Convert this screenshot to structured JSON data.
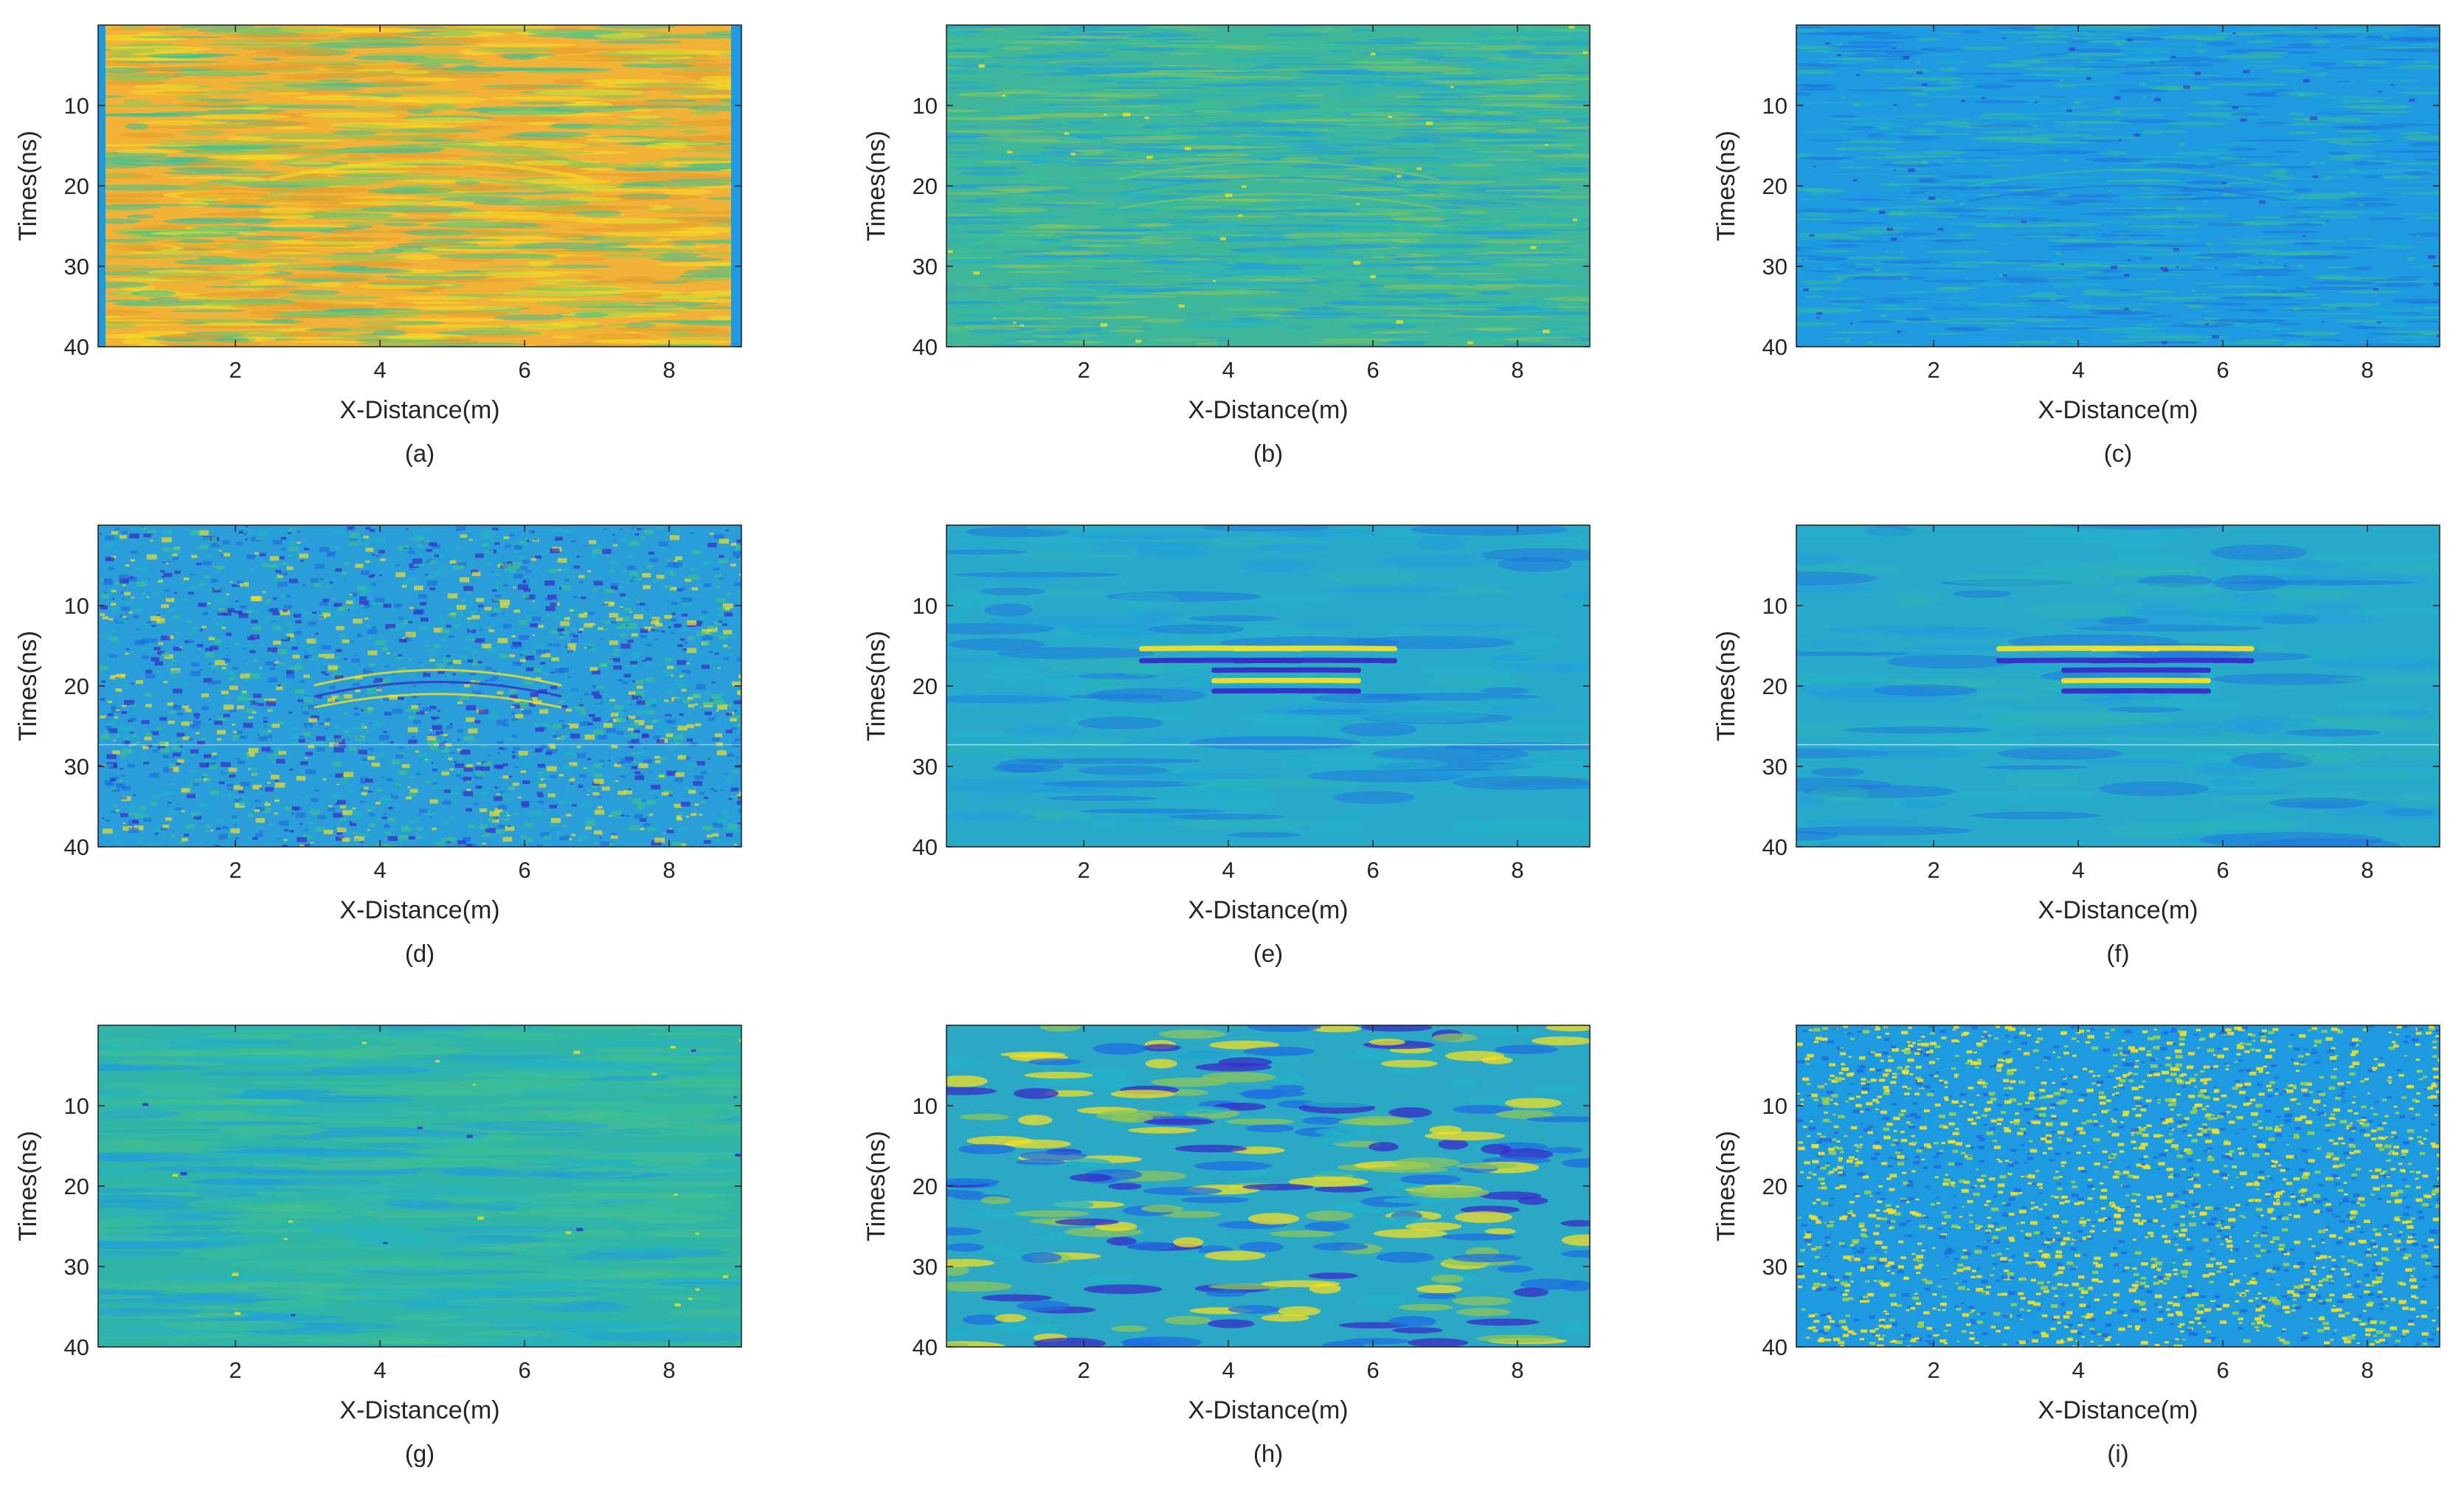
{
  "figure": {
    "panel_count": 9
  },
  "chart_data": [
    {
      "caption": "(a)",
      "type": "heatmap",
      "xlabel": "X-Distance(m)",
      "ylabel": "Times(ns)",
      "xlim": [
        0.1,
        9
      ],
      "ylim": [
        0,
        40
      ],
      "y_reversed": true,
      "xticks": [
        "2",
        "4",
        "6",
        "8"
      ],
      "yticks": [
        "10",
        "20",
        "30",
        "40"
      ],
      "colormap": "parula",
      "appearance": "predominantly orange/yellow with green horizontal streaks, faint hyperbola near 4-6 m, blue edge columns",
      "dominant_color": "#f0b030"
    },
    {
      "caption": "(b)",
      "type": "heatmap",
      "xlabel": "X-Distance(m)",
      "ylabel": "Times(ns)",
      "xlim": [
        0.1,
        9
      ],
      "ylim": [
        0,
        40
      ],
      "y_reversed": true,
      "xticks": [
        "2",
        "4",
        "6",
        "8"
      ],
      "yticks": [
        "10",
        "20",
        "30",
        "40"
      ],
      "colormap": "parula",
      "appearance": "green/teal horizontal noisy streaks with faint hyperbola centered near 4.7 m, 20 ns",
      "dominant_color": "#3fb59a"
    },
    {
      "caption": "(c)",
      "type": "heatmap",
      "xlabel": "X-Distance(m)",
      "ylabel": "Times(ns)",
      "xlim": [
        0.1,
        9
      ],
      "ylim": [
        0,
        40
      ],
      "y_reversed": true,
      "xticks": [
        "2",
        "4",
        "6",
        "8"
      ],
      "yticks": [
        "10",
        "20",
        "30",
        "40"
      ],
      "colormap": "parula",
      "appearance": "blue/teal noisy streaks, faint hyperbola near 4.7 m, 20 ns",
      "dominant_color": "#1f94d8"
    },
    {
      "caption": "(d)",
      "type": "heatmap",
      "xlabel": "X-Distance(m)",
      "ylabel": "Times(ns)",
      "xlim": [
        0.1,
        9
      ],
      "ylim": [
        0,
        40
      ],
      "y_reversed": true,
      "xticks": [
        "2",
        "4",
        "6",
        "8"
      ],
      "yticks": [
        "10",
        "20",
        "30",
        "40"
      ],
      "colormap": "parula",
      "appearance": "heavy speckle noise with visible hyperbola near 4.8 m, 18-22 ns",
      "dominant_color": "#2a9ed8"
    },
    {
      "caption": "(e)",
      "type": "heatmap",
      "xlabel": "X-Distance(m)",
      "ylabel": "Times(ns)",
      "xlim": [
        0.1,
        9
      ],
      "ylim": [
        0,
        40
      ],
      "y_reversed": true,
      "xticks": [
        "2",
        "4",
        "6",
        "8"
      ],
      "yticks": [
        "10",
        "20",
        "30",
        "40"
      ],
      "colormap": "parula",
      "appearance": "smooth teal background, strong hyperbolic reflections between 3-6 m at 15-21 ns",
      "dominant_color": "#28aacb"
    },
    {
      "caption": "(f)",
      "type": "heatmap",
      "xlabel": "X-Distance(m)",
      "ylabel": "Times(ns)",
      "xlim": [
        0.1,
        9
      ],
      "ylim": [
        0,
        40
      ],
      "y_reversed": true,
      "xticks": [
        "2",
        "4",
        "6",
        "8"
      ],
      "yticks": [
        "10",
        "20",
        "30",
        "40"
      ],
      "colormap": "parula",
      "appearance": "smooth teal background, strong clean hyperbolic reflections between 2.8-6.5 m at 15-21 ns",
      "dominant_color": "#28aacb"
    },
    {
      "caption": "(g)",
      "type": "heatmap",
      "xlabel": "X-Distance(m)",
      "ylabel": "Times(ns)",
      "xlim": [
        0.1,
        9
      ],
      "ylim": [
        0,
        40
      ],
      "y_reversed": true,
      "xticks": [
        "2",
        "4",
        "6",
        "8"
      ],
      "yticks": [
        "10",
        "20",
        "30",
        "40"
      ],
      "colormap": "parula",
      "appearance": "smooth green-teal horizontal bands, no clear target",
      "dominant_color": "#2fb4a8"
    },
    {
      "caption": "(h)",
      "type": "heatmap",
      "xlabel": "X-Distance(m)",
      "ylabel": "Times(ns)",
      "xlim": [
        0.1,
        9
      ],
      "ylim": [
        0,
        40
      ],
      "y_reversed": true,
      "xticks": [
        "2",
        "4",
        "6",
        "8"
      ],
      "yticks": [
        "10",
        "20",
        "30",
        "40"
      ],
      "colormap": "parula",
      "appearance": "blotchy horizontal yellow and dark blue lenses on teal background",
      "dominant_color": "#2aa8c4"
    },
    {
      "caption": "(i)",
      "type": "heatmap",
      "xlabel": "X-Distance(m)",
      "ylabel": "Times(ns)",
      "xlim": [
        0.1,
        9
      ],
      "ylim": [
        0,
        40
      ],
      "y_reversed": true,
      "xticks": [
        "2",
        "4",
        "6",
        "8"
      ],
      "yticks": [
        "10",
        "20",
        "30",
        "40"
      ],
      "colormap": "parula",
      "appearance": "random yellow speckles on blue background",
      "dominant_color": "#1c8fdc"
    }
  ]
}
